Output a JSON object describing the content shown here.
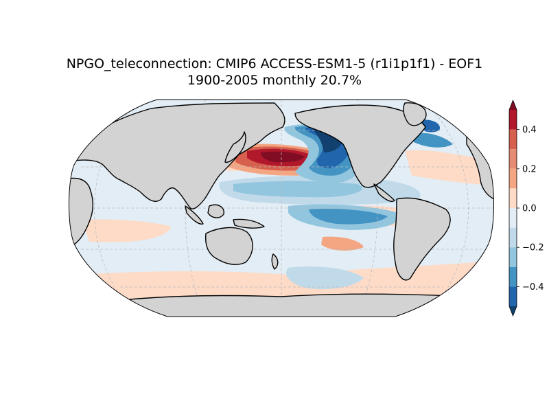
{
  "title": {
    "line1": "NPGO_teleconnection: CMIP6 ACCESS-ESM1-5 (r1i1p1f1) - EOF1",
    "line2": "1900-2005 monthly 20.7%"
  },
  "map": {
    "projection": "Robinson",
    "central_longitude": 180,
    "land_color": "#d3d3d3",
    "gridlines": "dashed"
  },
  "colorbar": {
    "ticks": [
      {
        "value": 0.4,
        "label": "0.4"
      },
      {
        "value": 0.2,
        "label": "0.2"
      },
      {
        "value": 0.0,
        "label": "0.0"
      },
      {
        "value": -0.2,
        "label": "−0.2"
      },
      {
        "value": -0.4,
        "label": "−0.4"
      }
    ],
    "range": [
      -0.5,
      0.5
    ],
    "levels": [
      {
        "from": 0.4,
        "to": 0.5,
        "color": "#b2182b"
      },
      {
        "from": 0.3,
        "to": 0.4,
        "color": "#d6604d"
      },
      {
        "from": 0.2,
        "to": 0.3,
        "color": "#e58b73"
      },
      {
        "from": 0.1,
        "to": 0.2,
        "color": "#f4a582"
      },
      {
        "from": 0.0,
        "to": 0.1,
        "color": "#fddbc7"
      },
      {
        "from": -0.1,
        "to": 0.0,
        "color": "#e3edf5"
      },
      {
        "from": -0.2,
        "to": -0.1,
        "color": "#c0daea"
      },
      {
        "from": -0.3,
        "to": -0.2,
        "color": "#92c5de"
      },
      {
        "from": -0.4,
        "to": -0.3,
        "color": "#4393c3"
      },
      {
        "from": -0.5,
        "to": -0.4,
        "color": "#2166ac"
      }
    ],
    "extend_max_color": "#800d24",
    "extend_min_color": "#12406f"
  }
}
